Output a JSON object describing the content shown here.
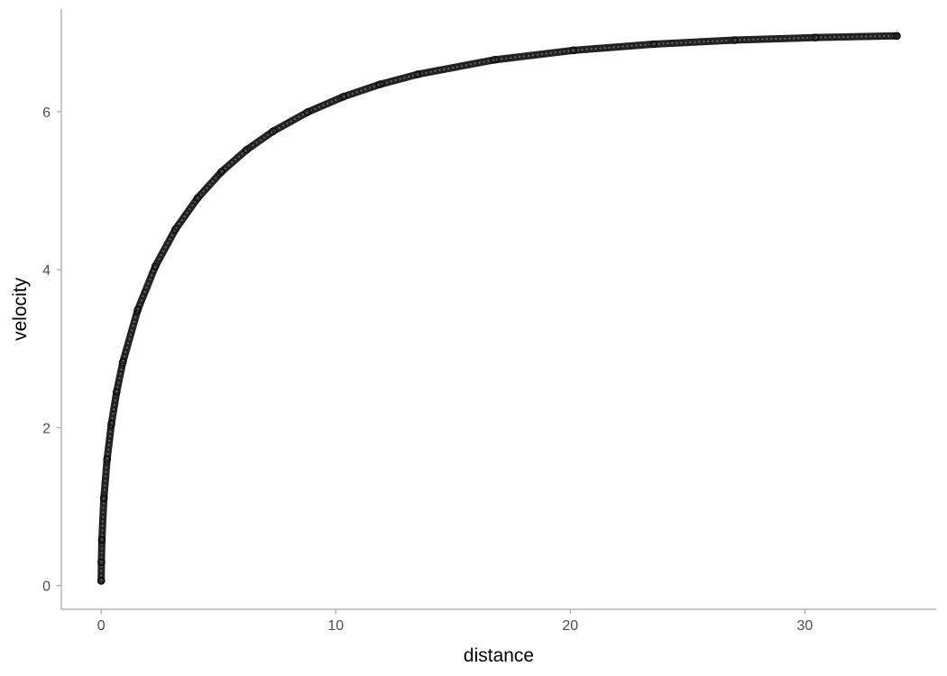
{
  "chart_data": {
    "type": "scatter",
    "title": "",
    "xlabel": "distance",
    "ylabel": "velocity",
    "xlim": [
      -1.7,
      35.6
    ],
    "ylim": [
      -0.3,
      7.3
    ],
    "x_ticks": [
      0,
      10,
      20,
      30
    ],
    "y_ticks": [
      0,
      2,
      4,
      6
    ],
    "grid": false,
    "marker": "open-circle",
    "colors": {
      "points": "#000000",
      "axis": "#a6a6a6"
    },
    "points": [
      {
        "x": 0.0,
        "y": 0.06
      },
      {
        "x": 0.008,
        "y": 0.295
      },
      {
        "x": 0.029,
        "y": 0.578
      },
      {
        "x": 0.114,
        "y": 1.109
      },
      {
        "x": 0.25,
        "y": 1.595
      },
      {
        "x": 0.432,
        "y": 2.042
      },
      {
        "x": 0.657,
        "y": 2.451
      },
      {
        "x": 0.921,
        "y": 2.827
      },
      {
        "x": 1.554,
        "y": 3.488
      },
      {
        "x": 2.309,
        "y": 4.044
      },
      {
        "x": 3.166,
        "y": 4.512
      },
      {
        "x": 4.109,
        "y": 4.906
      },
      {
        "x": 5.124,
        "y": 5.238
      },
      {
        "x": 6.2,
        "y": 5.517
      },
      {
        "x": 7.328,
        "y": 5.752
      },
      {
        "x": 8.797,
        "y": 5.994
      },
      {
        "x": 10.321,
        "y": 6.189
      },
      {
        "x": 11.889,
        "y": 6.346
      },
      {
        "x": 13.491,
        "y": 6.473
      },
      {
        "x": 16.778,
        "y": 6.657
      },
      {
        "x": 20.138,
        "y": 6.777
      },
      {
        "x": 23.548,
        "y": 6.855
      },
      {
        "x": 26.989,
        "y": 6.906
      },
      {
        "x": 30.451,
        "y": 6.939
      },
      {
        "x": 33.926,
        "y": 6.96
      }
    ]
  }
}
